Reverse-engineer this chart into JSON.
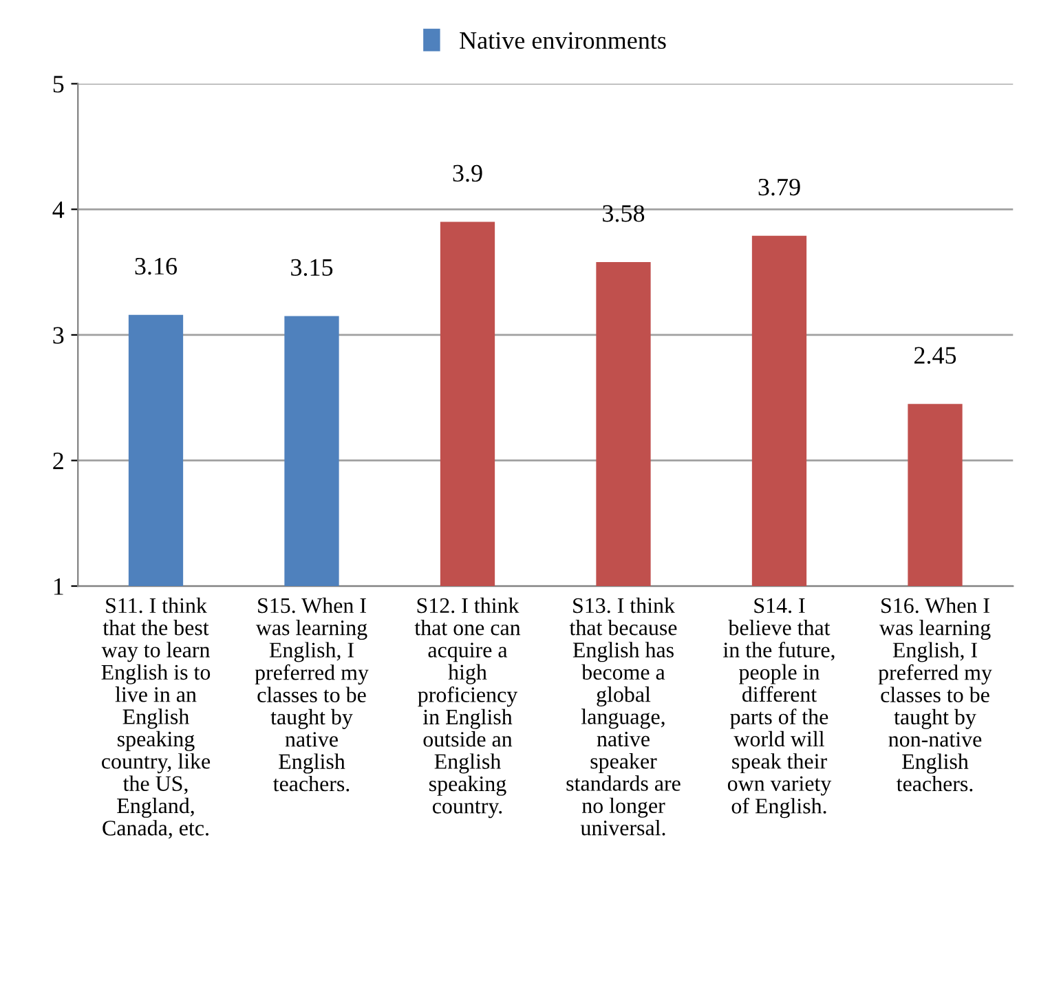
{
  "chart_data": {
    "type": "bar",
    "categories": [
      "S11. I think\nthat the best\nway to learn\nEnglish is to\nlive in an\nEnglish\nspeaking\ncountry, like\nthe US,\nEngland,\nCanada, etc.",
      "S15. When I\nwas learning\nEnglish, I\npreferred my\nclasses to be\ntaught by\nnative\nEnglish\nteachers.",
      "S12. I think\nthat one can\nacquire a\nhigh\nproficiency\nin English\noutside an\nEnglish\nspeaking\ncountry.",
      "S13. I think\nthat because\nEnglish has\nbecome a\nglobal\nlanguage,\nnative\nspeaker\nstandards are\nno longer\nuniversal.",
      "S14. I\nbelieve that\nin the future,\npeople in\ndifferent\nparts of the\nworld will\nspeak their\nown variety\nof English.",
      "S16. When I\nwas learning\nEnglish, I\npreferred my\nclasses to be\ntaught by\nnon-native\nEnglish\nteachers."
    ],
    "series": [
      {
        "name": "Native environments",
        "values": [
          3.16,
          3.15,
          3.9,
          3.58,
          3.79,
          2.45
        ],
        "colors": [
          "#4f81bd",
          "#4f81bd",
          "#c0504d",
          "#c0504d",
          "#c0504d",
          "#c0504d"
        ]
      }
    ],
    "ylim": [
      1,
      5
    ],
    "yticks": [
      1,
      2,
      3,
      4,
      5
    ],
    "grid": "y",
    "legend": "top",
    "data_labels": true
  }
}
